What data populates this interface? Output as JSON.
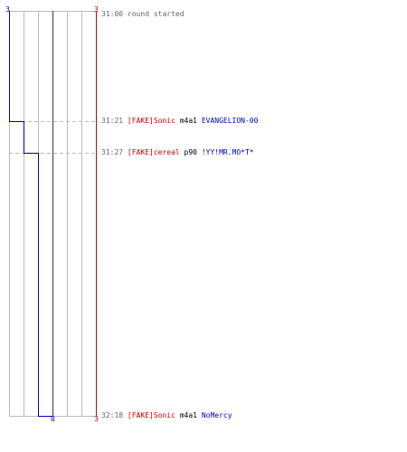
{
  "scores": {
    "blue_top": "3",
    "red_top": "3",
    "bottom_zero": "0",
    "red_bottom": "3"
  },
  "colors": {
    "blue": "#0000bb",
    "red": "#cc0000",
    "grid": "#bbbbbb",
    "center": "#666666",
    "dash": "#bbbbbb"
  },
  "events": [
    {
      "time": "31:00",
      "text": "round started"
    },
    {
      "time": "31:21",
      "killer": "[FAKE]Sonic",
      "weapon": "m4a1",
      "victim": "EVANGELION-00"
    },
    {
      "time": "31:27",
      "killer": "[FAKE]cereal",
      "weapon": "p90",
      "victim": "!YY!MR.MO*T*"
    },
    {
      "time": "32:18",
      "killer": "[FAKE]Sonic",
      "weapon": "m4a1",
      "victim": "NoMercy"
    }
  ]
}
